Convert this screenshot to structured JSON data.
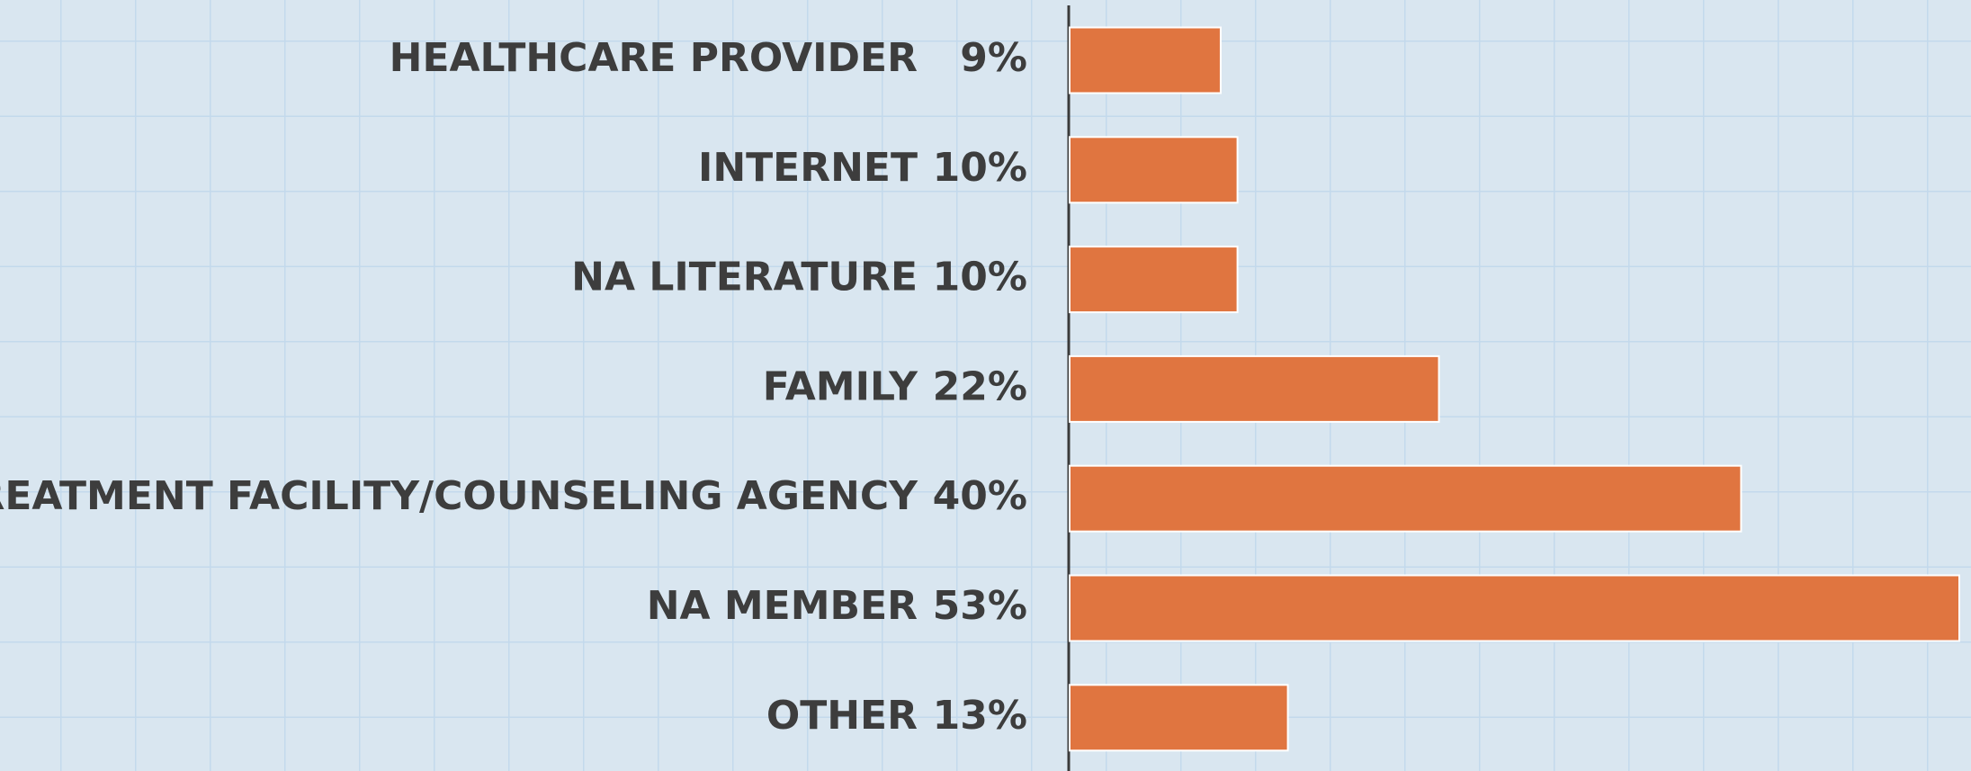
{
  "chart_data": {
    "type": "bar",
    "orientation": "horizontal",
    "categories": [
      "HEALTHCARE PROVIDER",
      "INTERNET",
      "NA LITERATURE",
      "FAMILY",
      "TREATMENT FACILITY/COUNSELING AGENCY",
      "NA MEMBER",
      "OTHER"
    ],
    "values": [
      9,
      10,
      10,
      22,
      40,
      53,
      13
    ],
    "value_labels": [
      "9%",
      "10%",
      "10%",
      "22%",
      "40%",
      "53%",
      "13%"
    ],
    "color": "#e07540"
  }
}
